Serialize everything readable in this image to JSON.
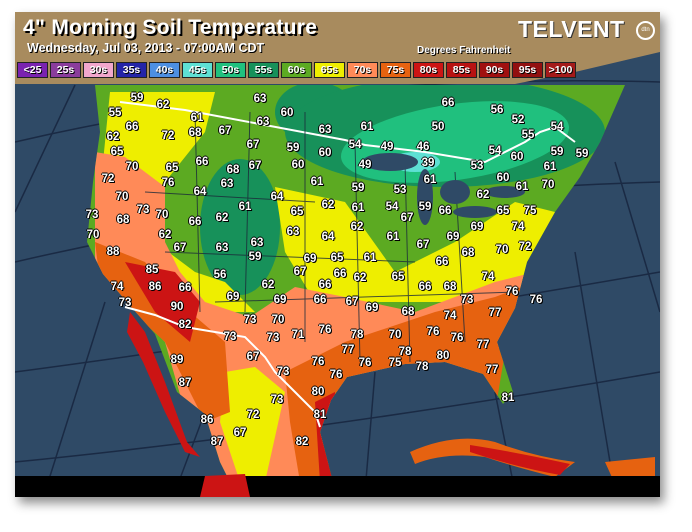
{
  "header": {
    "title": "4\" Morning Soil Temperature",
    "subtitle": "Wednesday, Jul 03, 2013 - 07:00AM CDT",
    "units": "Degrees Fahrenheit",
    "logo_text": "TELVENT",
    "logo_badge": "dtn"
  },
  "legend": [
    {
      "label": "<25",
      "color": "#7a22b0"
    },
    {
      "label": "25s",
      "color": "#8a3c9c"
    },
    {
      "label": "30s",
      "color": "#f2a6cc"
    },
    {
      "label": "35s",
      "color": "#2424a8"
    },
    {
      "label": "40s",
      "color": "#4d8fe2"
    },
    {
      "label": "45s",
      "color": "#5ee0d4"
    },
    {
      "label": "50s",
      "color": "#20c07e"
    },
    {
      "label": "55s",
      "color": "#17915a"
    },
    {
      "label": "60s",
      "color": "#5caa22"
    },
    {
      "label": "65s",
      "color": "#eeee00"
    },
    {
      "label": "70s",
      "color": "#ff8a58"
    },
    {
      "label": "75s",
      "color": "#e66210"
    },
    {
      "label": "80s",
      "color": "#cc1414"
    },
    {
      "label": "85s",
      "color": "#b81212"
    },
    {
      "label": "90s",
      "color": "#a01010"
    },
    {
      "label": "95s",
      "color": "#921010"
    },
    {
      "label": ">100",
      "color": "#a41a1a"
    }
  ],
  "colors": {
    "ocean": "#2f4a66",
    "canada_land": "#a88b5e",
    "border": "#ffffff"
  },
  "readings": [
    "59",
    "62",
    "63",
    "60",
    "55",
    "66",
    "61",
    "63",
    "63",
    "62",
    "72",
    "68",
    "67",
    "67",
    "59",
    "60",
    "65",
    "70",
    "66",
    "67",
    "60",
    "65",
    "68",
    "72",
    "76",
    "63",
    "61",
    "64",
    "64",
    "70",
    "61",
    "65",
    "62",
    "73",
    "73",
    "70",
    "68",
    "66",
    "62",
    "63",
    "64",
    "70",
    "62",
    "67",
    "63",
    "63",
    "59",
    "69",
    "65",
    "88",
    "85",
    "56",
    "67",
    "62",
    "66",
    "74",
    "86",
    "66",
    "69",
    "69",
    "66",
    "73",
    "90",
    "82",
    "73",
    "70",
    "76",
    "73",
    "73",
    "71",
    "67",
    "76",
    "73",
    "89",
    "87",
    "80",
    "73",
    "81",
    "72",
    "86",
    "67",
    "87",
    "82",
    "66",
    "56",
    "52",
    "61",
    "50",
    "55",
    "54",
    "54",
    "49",
    "46",
    "54",
    "53",
    "60",
    "59",
    "59",
    "49",
    "39",
    "61",
    "60",
    "61",
    "59",
    "53",
    "61",
    "70",
    "62",
    "61",
    "54",
    "59",
    "66",
    "65",
    "75",
    "67",
    "74",
    "62",
    "61",
    "69",
    "67",
    "69",
    "72",
    "70",
    "61",
    "66",
    "68",
    "62",
    "65",
    "74",
    "66",
    "68",
    "76",
    "66",
    "67",
    "69",
    "78",
    "77",
    "76",
    "76",
    "73",
    "77",
    "74",
    "68",
    "78",
    "70",
    "76",
    "76",
    "77",
    "78",
    "80",
    "76",
    "75",
    "77",
    "81"
  ]
}
